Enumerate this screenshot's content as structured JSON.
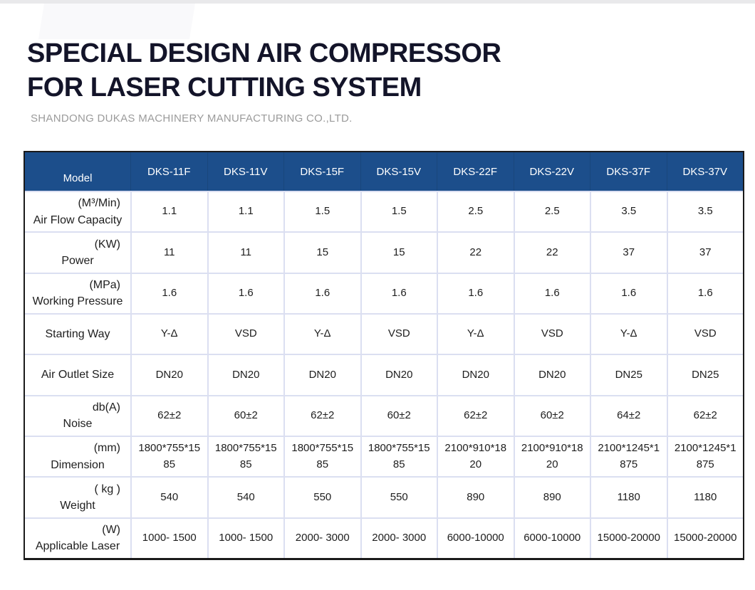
{
  "page": {
    "title_line1": "SPECIAL DESIGN AIR COMPRESSOR",
    "title_line2": "FOR LASER CUTTING SYSTEM",
    "subtitle": "SHANDONG DUKAS MACHINERY MANUFACTURING CO.,LTD."
  },
  "colors": {
    "header_bg": "#1c4e8b",
    "header_text": "#ffffff",
    "grid_line": "#dbdff1",
    "outer_border": "#1a1a1a",
    "title_text": "#131429",
    "subtitle_text": "#9b9b9b",
    "body_text": "#202020",
    "top_strip": "#e9e9eb"
  },
  "table": {
    "header": {
      "label": "Model",
      "columns": [
        "DKS-11F",
        "DKS-11V",
        "DKS-15F",
        "DKS-15V",
        "DKS-22F",
        "DKS-22V",
        "DKS-37F",
        "DKS-37V"
      ]
    },
    "rows": [
      {
        "unit": "(M³/Min)",
        "name": "Air Flow Capacity",
        "values": [
          "1.1",
          "1.1",
          "1.5",
          "1.5",
          "2.5",
          "2.5",
          "3.5",
          "3.5"
        ]
      },
      {
        "unit": "(KW)",
        "name": "Power",
        "values": [
          "11",
          "11",
          "15",
          "15",
          "22",
          "22",
          "37",
          "37"
        ]
      },
      {
        "unit": "(MPa)",
        "name": "Working Pressure",
        "values": [
          "1.6",
          "1.6",
          "1.6",
          "1.6",
          "1.6",
          "1.6",
          "1.6",
          "1.6"
        ]
      },
      {
        "unit": "",
        "name": "Starting Way",
        "values": [
          "Y-Δ",
          "VSD",
          "Y-Δ",
          "VSD",
          "Y-Δ",
          "VSD",
          "Y-Δ",
          "VSD"
        ]
      },
      {
        "unit": "",
        "name": "Air Outlet Size",
        "values": [
          "DN20",
          "DN20",
          "DN20",
          "DN20",
          "DN20",
          "DN20",
          "DN25",
          "DN25"
        ]
      },
      {
        "unit": "db(A)",
        "name": "Noise",
        "values": [
          "62±2",
          "60±2",
          "62±2",
          "60±2",
          "62±2",
          "60±2",
          "64±2",
          "62±2"
        ]
      },
      {
        "unit": "(mm)",
        "name": "Dimension",
        "values": [
          "1800*755*1585",
          "1800*755*1585",
          "1800*755*1585",
          "1800*755*1585",
          "2100*910*1820",
          "2100*910*1820",
          "2100*1245*1875",
          "2100*1245*1875"
        ]
      },
      {
        "unit": "( kg )",
        "name": "Weight",
        "values": [
          "540",
          "540",
          "550",
          "550",
          "890",
          "890",
          "1180",
          "1180"
        ]
      },
      {
        "unit": "(W)",
        "name": "Applicable Laser",
        "values": [
          "1000- 1500",
          "1000- 1500",
          "2000- 3000",
          "2000- 3000",
          "6000-10000",
          "6000-10000",
          "15000-20000",
          "15000-20000"
        ]
      }
    ]
  }
}
